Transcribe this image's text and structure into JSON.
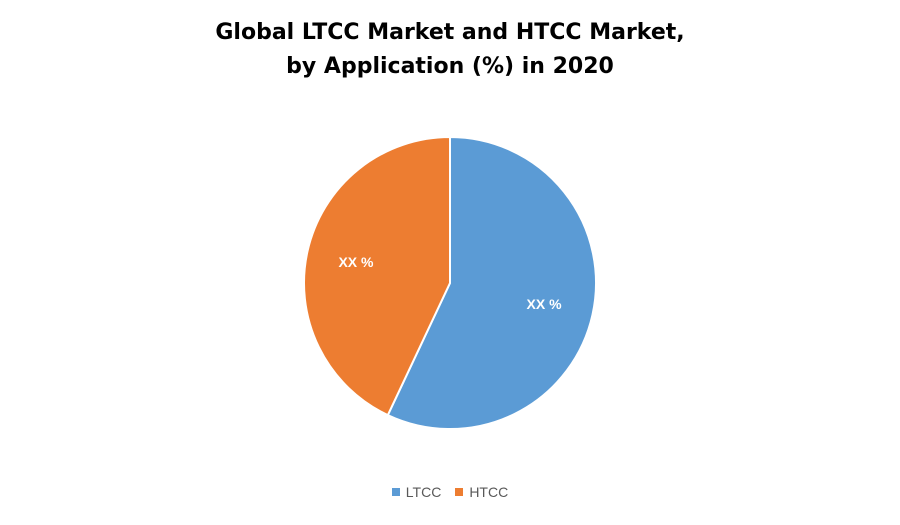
{
  "chart_data": {
    "type": "pie",
    "title": "Global LTCC Market and HTCC Market,",
    "subtitle": "by Application (%) in 2020",
    "categories": [
      "LTCC",
      "HTCC"
    ],
    "values": [
      57,
      43
    ],
    "data_labels": [
      "XX %",
      "XX %"
    ],
    "colors": [
      "#5B9BD5",
      "#ED7D31"
    ],
    "legend_position": "bottom"
  }
}
